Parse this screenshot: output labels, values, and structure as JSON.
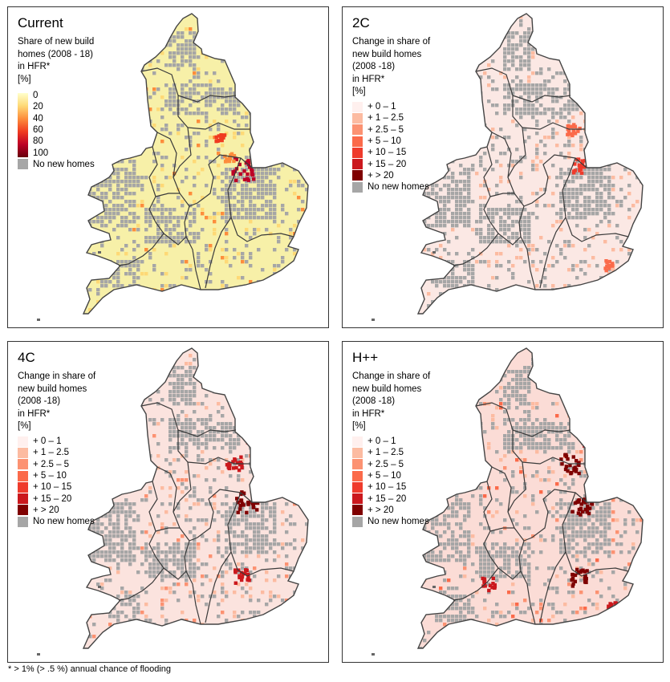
{
  "panels": [
    {
      "title": "Current",
      "legend_title": "Share of new build\nhomes (2008 - 18)\nin HFR*\n[%]",
      "legend_type": "continuous",
      "legend_items": [
        "0",
        "20",
        "40",
        "60",
        "80",
        "100"
      ],
      "legend_colors": [
        "#ffffcc",
        "#fed976",
        "#fd8d3c",
        "#f03b20",
        "#bd0026",
        "#67000d"
      ],
      "no_data_label": "No new homes",
      "no_data_color": "#a6a6a6",
      "base_color": "#f7f0a8"
    },
    {
      "title": "2C",
      "legend_title": "Change in share of\nnew build homes\n(2008 -18)\nin HFR*\n[%]",
      "legend_type": "discrete",
      "legend_items": [
        "+ 0 – 1",
        "+ 1 – 2.5",
        "+ 2.5 – 5",
        "+ 5 – 10",
        "+ 10 – 15",
        "+ 15 – 20",
        "+ > 20"
      ],
      "legend_colors": [
        "#fff0ee",
        "#fcbba1",
        "#fc9272",
        "#fb6a4a",
        "#ef3b2c",
        "#cb181d",
        "#7f0000"
      ],
      "no_data_label": "No new homes",
      "no_data_color": "#a6a6a6",
      "base_color": "#fbe8e4"
    },
    {
      "title": "4C",
      "legend_title": "Change in share of\nnew build homes\n(2008 -18)\nin HFR*\n[%]",
      "legend_type": "discrete",
      "legend_items": [
        "+ 0 – 1",
        "+ 1 – 2.5",
        "+ 2.5 – 5",
        "+ 5 – 10",
        "+ 10 – 15",
        "+ 15 – 20",
        "+ > 20"
      ],
      "legend_colors": [
        "#fff0ee",
        "#fcbba1",
        "#fc9272",
        "#fb6a4a",
        "#ef3b2c",
        "#cb181d",
        "#7f0000"
      ],
      "no_data_label": "No new homes",
      "no_data_color": "#a6a6a6",
      "base_color": "#fbe3de"
    },
    {
      "title": "H++",
      "legend_title": "Change in share of\nnew build homes\n(2008 -18)\nin HFR*\n[%]",
      "legend_type": "discrete",
      "legend_items": [
        "+ 0 – 1",
        "+ 1 – 2.5",
        "+ 2.5 – 5",
        "+ 5 – 10",
        "+ 10 – 15",
        "+ 15 – 20",
        "+ > 20"
      ],
      "legend_colors": [
        "#fff0ee",
        "#fcbba1",
        "#fc9272",
        "#fb6a4a",
        "#ef3b2c",
        "#cb181d",
        "#7f0000"
      ],
      "no_data_label": "No new homes",
      "no_data_color": "#a6a6a6",
      "base_color": "#fbdcd6"
    }
  ],
  "footnote": "* > 1% (> .5 %) annual chance of flooding"
}
